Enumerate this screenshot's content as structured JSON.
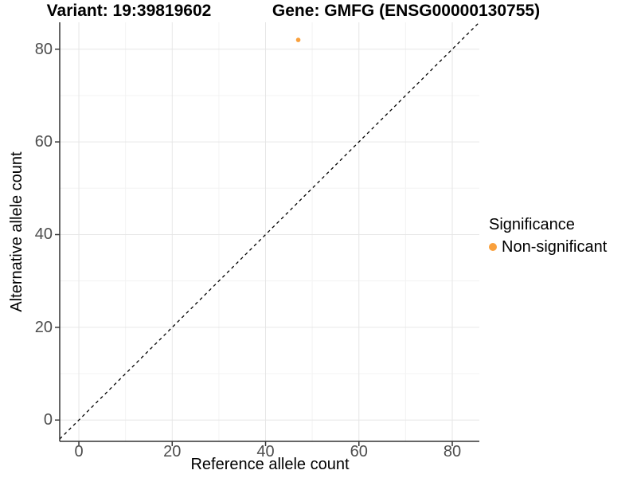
{
  "titles": {
    "variant": "Variant: 19:39819602",
    "gene": "Gene: GMFG (ENSG00000130755)"
  },
  "chart_data": {
    "type": "scatter",
    "xlabel": "Reference allele count",
    "ylabel": "Alternative allele count",
    "xlim": [
      -4.1,
      85.8
    ],
    "ylim": [
      -4.6,
      85.8
    ],
    "x_ticks": [
      0,
      20,
      40,
      60,
      80
    ],
    "y_ticks": [
      0,
      20,
      40,
      60,
      80
    ],
    "grid": true,
    "series": [
      {
        "name": "Non-significant",
        "color": "#F9A03C",
        "points": [
          {
            "x": 47,
            "y": 82
          }
        ]
      }
    ],
    "identity_line": {
      "slope": 1,
      "intercept": 0,
      "style": "dashed",
      "color": "#000000"
    },
    "legend": {
      "title": "Significance",
      "position": "right",
      "items": [
        {
          "label": "Non-significant",
          "color": "#F9A03C"
        }
      ]
    }
  },
  "colors": {
    "background": "#FFFFFF",
    "axis": "#333333",
    "tick_label": "#4d4d4d",
    "grid_major": "#E6E6E6",
    "grid_minor": "#F3F3F3",
    "point": "#F9A03C"
  }
}
